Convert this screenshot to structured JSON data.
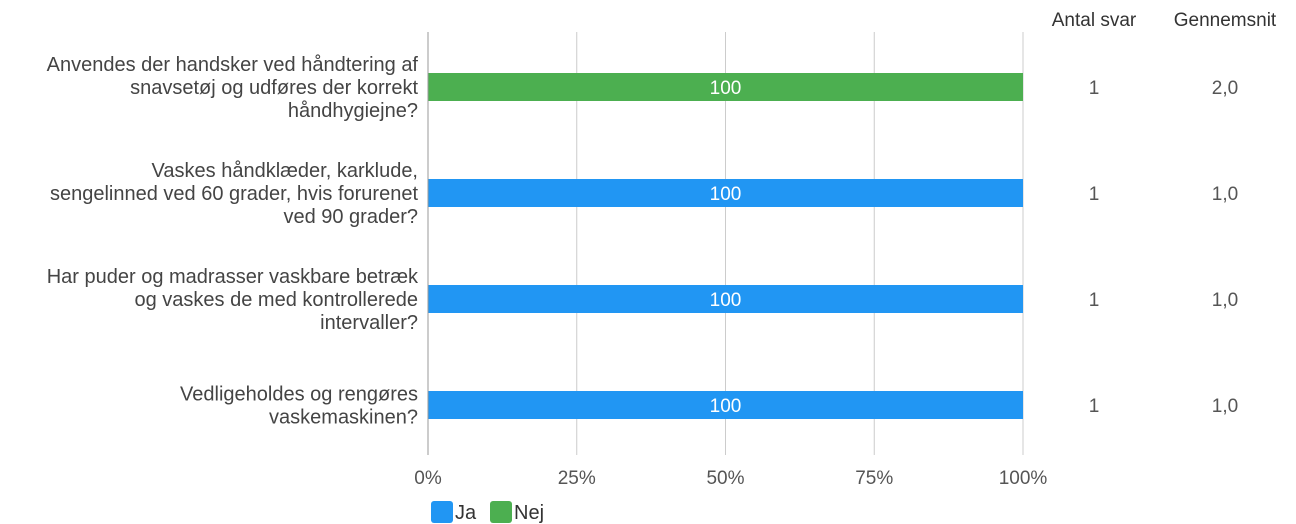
{
  "chart_data": {
    "type": "bar",
    "orientation": "horizontal",
    "stacked": true,
    "categories": [
      [
        "Anvendes der handsker ved håndtering af",
        "snavsetøj og udføres der korrekt",
        "håndhygiejne?"
      ],
      [
        "Vaskes håndklæder, karklude,",
        "sengelinned ved 60 grader, hvis forurenet",
        "ved 90 grader?"
      ],
      [
        "Har puder og madrasser vaskbare betræk",
        "og vaskes de med kontrollerede",
        "intervaller?"
      ],
      [
        "Vedligeholdes og rengøres",
        "vaskemaskinen?"
      ]
    ],
    "series": [
      {
        "name": "Ja",
        "color": "#2196f3",
        "values": [
          0,
          100,
          100,
          100
        ]
      },
      {
        "name": "Nej",
        "color": "#4caf50",
        "values": [
          100,
          0,
          0,
          0
        ]
      }
    ],
    "data_labels": [
      "100",
      "100",
      "100",
      "100"
    ],
    "xlim": [
      0,
      100
    ],
    "x_ticks": [
      "0%",
      "25%",
      "50%",
      "75%",
      "100%"
    ],
    "x_tick_values": [
      0,
      25,
      50,
      75,
      100
    ],
    "grid": true,
    "legend_position": "bottom-left",
    "table_columns": [
      {
        "header": "Antal svar",
        "values": [
          "1",
          "1",
          "1",
          "1"
        ]
      },
      {
        "header": "Gennemsnit",
        "values": [
          "2,0",
          "1,0",
          "1,0",
          "1,0"
        ]
      }
    ]
  }
}
